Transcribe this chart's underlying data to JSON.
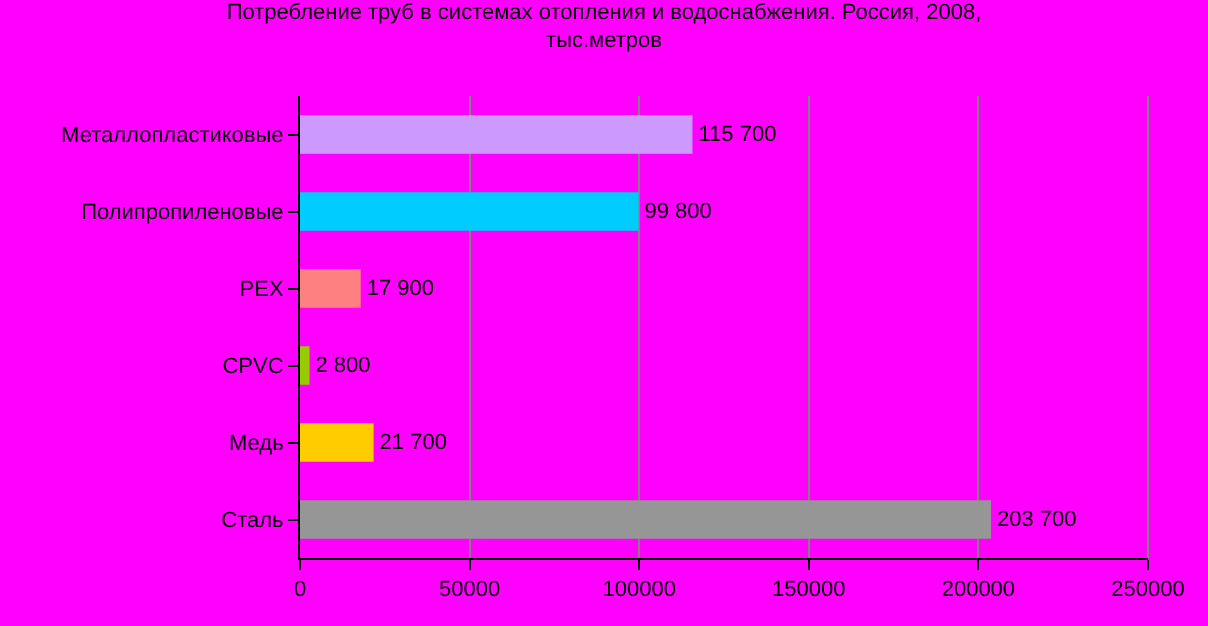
{
  "chart_data": {
    "type": "bar",
    "orientation": "horizontal",
    "title": "Потребление труб в системах отопления и водоснабжения. Россия, 2008,\nтыс.метров",
    "categories": [
      "Металлопластиковые",
      "Полипропиленовые",
      "PEX",
      "CPVC",
      "Медь",
      "Сталь"
    ],
    "values": [
      115700,
      99800,
      17900,
      2800,
      21700,
      203700
    ],
    "colors": [
      "#cc99ff",
      "#00ccff",
      "#ff8080",
      "#99cc00",
      "#ffcc00",
      "#969696"
    ],
    "value_labels": [
      "115 700",
      "99 800",
      "17 900",
      "2 800",
      "21 700",
      "203 700"
    ],
    "xlim": [
      0,
      250000
    ],
    "xticks": [
      0,
      50000,
      100000,
      150000,
      200000,
      250000
    ],
    "grid": "x",
    "legend": false
  }
}
